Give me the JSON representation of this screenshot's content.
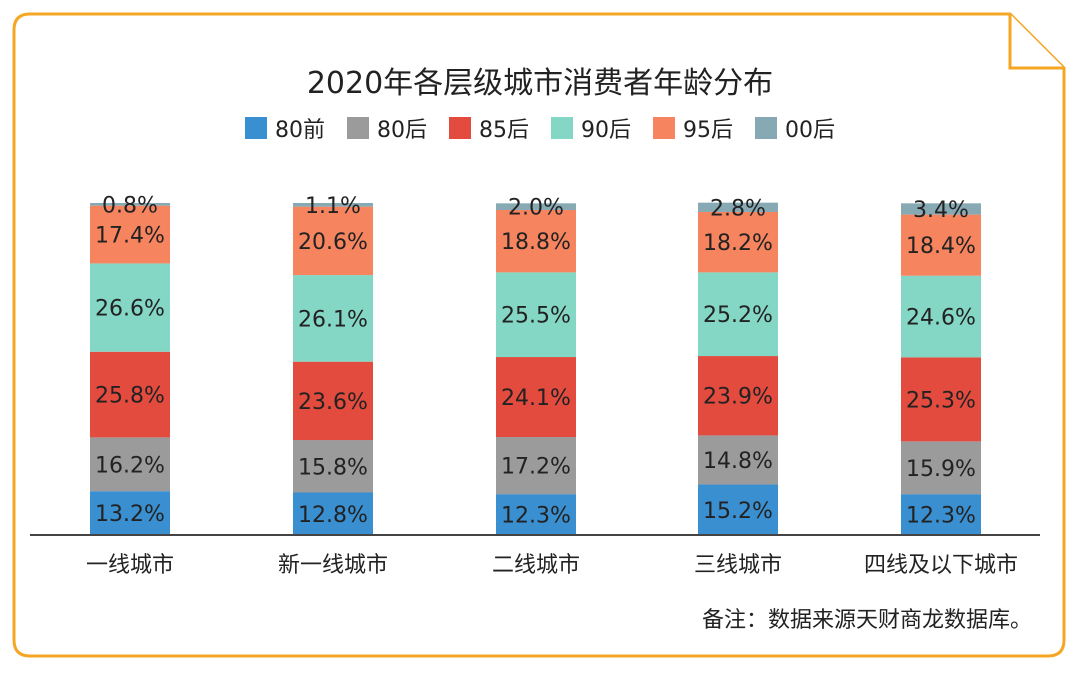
{
  "chart_data": {
    "type": "bar",
    "stacked": true,
    "title": "2020年各层级城市消费者年龄分布",
    "categories": [
      "一线城市",
      "新一线城市",
      "二线城市",
      "三线城市",
      "四线及以下城市"
    ],
    "series": [
      {
        "name": "80前",
        "color": "#3a8fd0",
        "values": [
          13.2,
          12.8,
          12.3,
          15.2,
          12.3
        ],
        "labels": [
          "13.2%",
          "12.8%",
          "12.3%",
          "15.2%",
          "12.3%"
        ]
      },
      {
        "name": "80后",
        "color": "#9b9b9b",
        "values": [
          16.2,
          15.8,
          17.2,
          14.8,
          15.9
        ],
        "labels": [
          "16.2%",
          "15.8%",
          "17.2%",
          "14.8%",
          "15.9%"
        ]
      },
      {
        "name": "85后",
        "color": "#e34b3f",
        "values": [
          25.8,
          23.6,
          24.1,
          23.9,
          25.3
        ],
        "labels": [
          "25.8%",
          "23.6%",
          "24.1%",
          "23.9%",
          "25.3%"
        ]
      },
      {
        "name": "90后",
        "color": "#84d7c5",
        "values": [
          26.6,
          26.1,
          25.5,
          25.2,
          24.6
        ],
        "labels": [
          "26.6%",
          "26.1%",
          "25.5%",
          "25.2%",
          "24.6%"
        ]
      },
      {
        "name": "95后",
        "color": "#f6845f",
        "values": [
          17.4,
          20.6,
          18.8,
          18.2,
          18.4
        ],
        "labels": [
          "17.4%",
          "20.6%",
          "18.8%",
          "18.2%",
          "18.4%"
        ]
      },
      {
        "name": "00后",
        "color": "#86a9b4",
        "values": [
          0.8,
          1.1,
          2.0,
          2.8,
          3.4
        ],
        "labels": [
          "0.8%",
          "1.1%",
          "2.0%",
          "2.8%",
          "3.4%"
        ]
      }
    ],
    "ylim": [
      0,
      100
    ],
    "grid": false,
    "legend_position": "top"
  },
  "footnote": "备注：数据来源天财商龙数据库。",
  "colors": {
    "frame": "#f5a623",
    "text": "#222222",
    "axis": "#444444"
  }
}
